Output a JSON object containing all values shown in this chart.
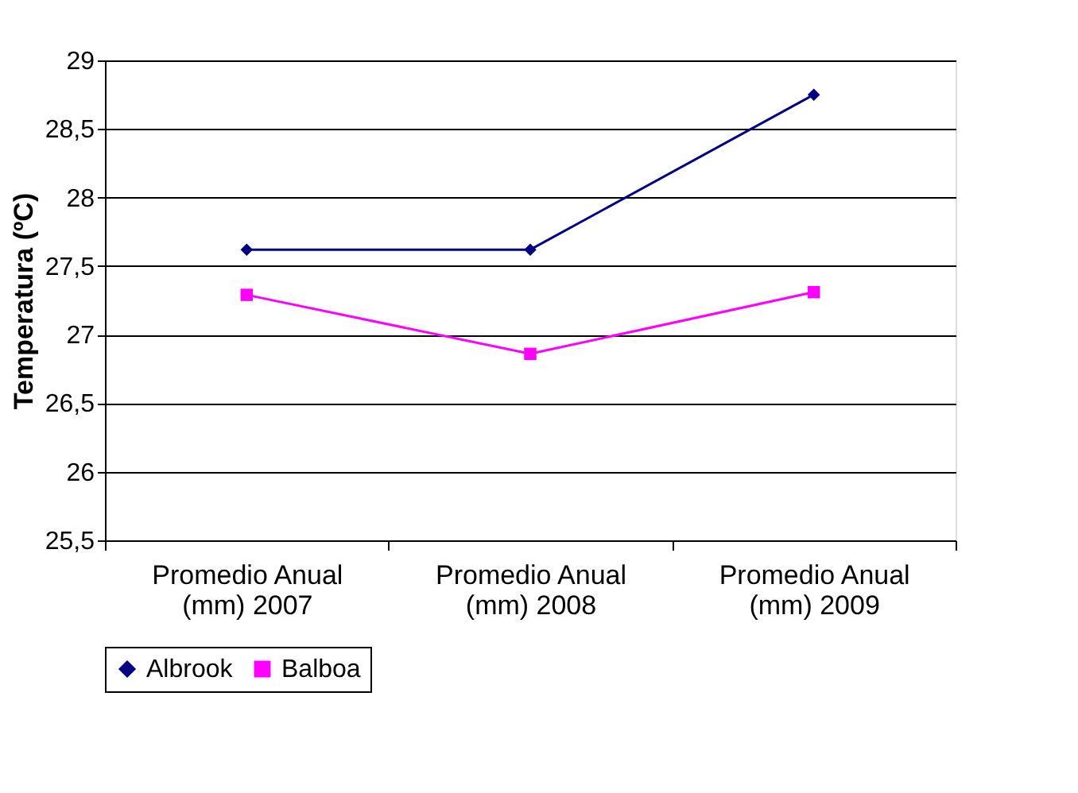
{
  "chart_data": {
    "type": "line",
    "ylabel": "Temperatura (ºC)",
    "categories": [
      "Promedio Anual (mm) 2007",
      "Promedio Anual (mm) 2008",
      "Promedio Anual (mm) 2009"
    ],
    "series": [
      {
        "name": "Albrook",
        "color": "#000080",
        "marker": "diamond",
        "values": [
          27.62,
          27.62,
          28.75
        ]
      },
      {
        "name": "Balboa",
        "color": "#ff00ff",
        "marker": "square",
        "values": [
          27.29,
          26.86,
          27.31
        ]
      }
    ],
    "ylim": [
      25.5,
      29
    ],
    "yticks": [
      {
        "value": 25.5,
        "label": "25,5"
      },
      26,
      {
        "value": 26.5,
        "label": "26,5"
      },
      27,
      {
        "value": 27.5,
        "label": "27,5"
      },
      28,
      {
        "value": 28.5,
        "label": "28,5"
      },
      29
    ],
    "grid": "y",
    "legend": "bottom"
  }
}
